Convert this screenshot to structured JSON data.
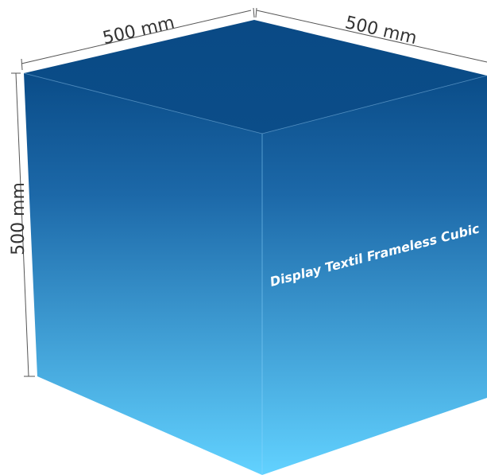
{
  "dimensions": {
    "width": "500 mm",
    "depth": "500 mm",
    "height": "500 mm"
  },
  "product_label": "Display Textil Frameless Cubic"
}
